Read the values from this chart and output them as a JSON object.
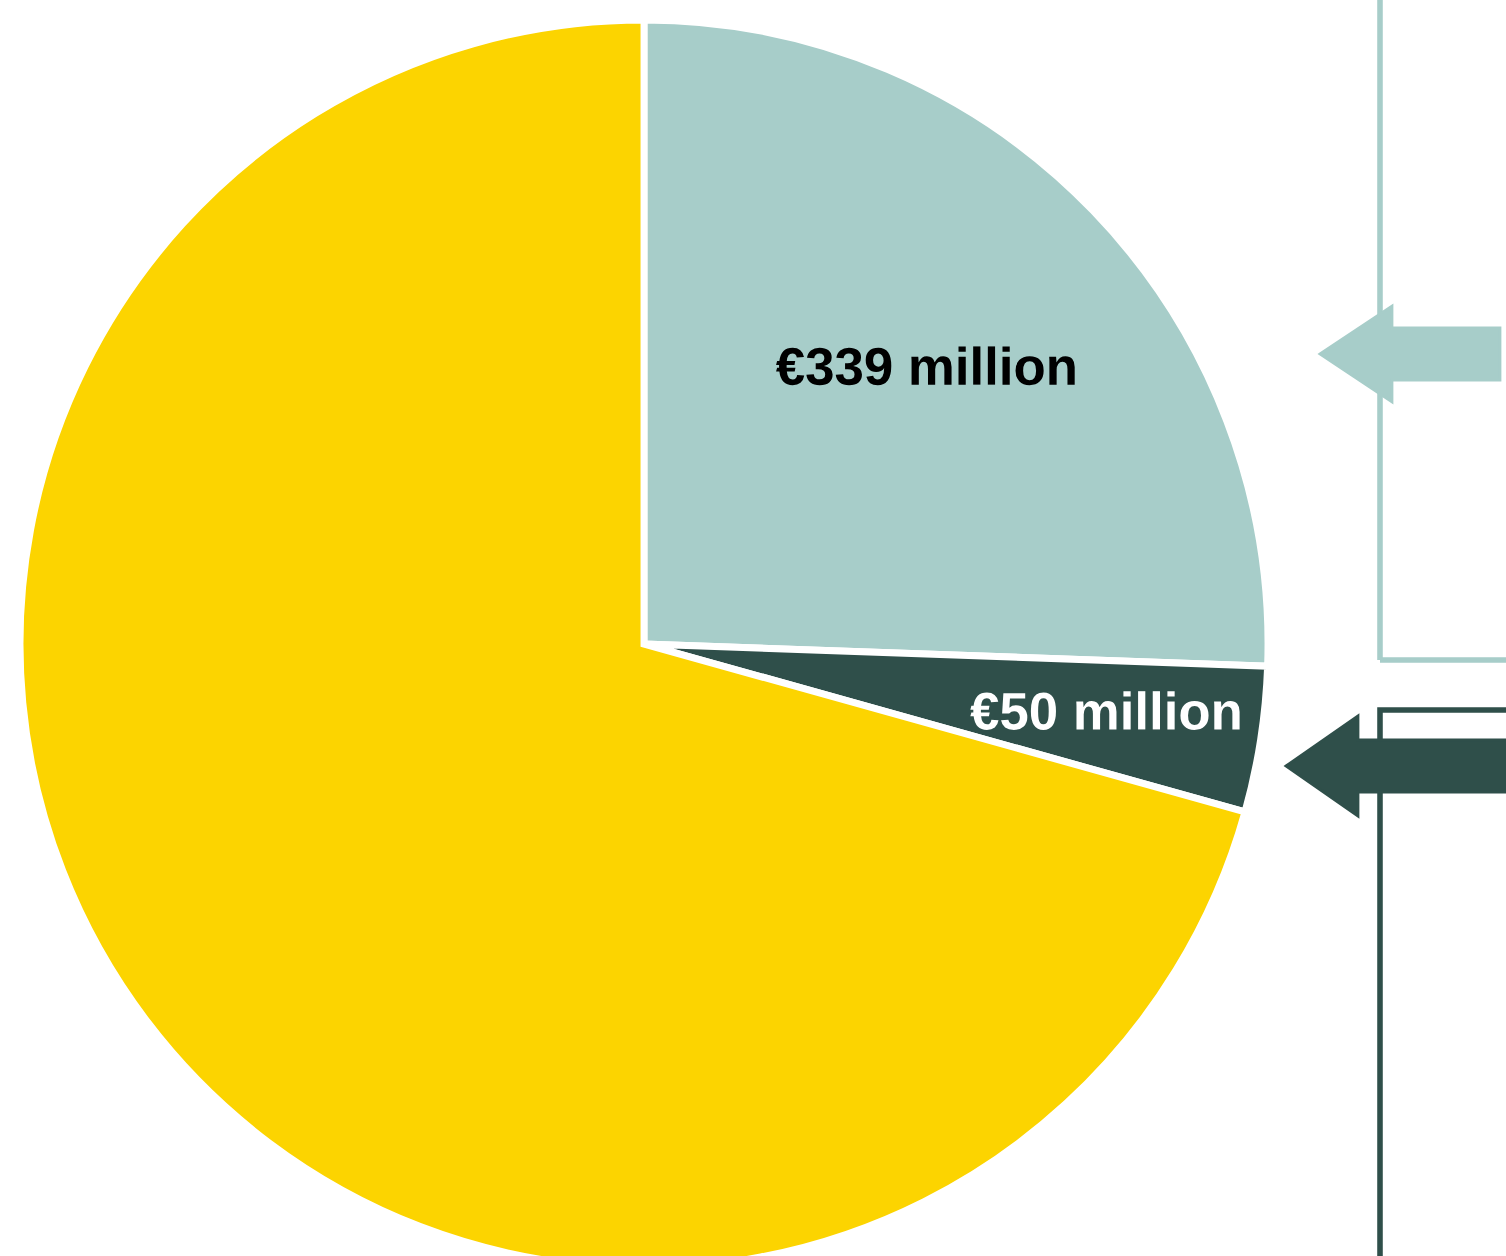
{
  "chart_data": {
    "type": "pie",
    "categories": [
      null,
      null,
      null
    ],
    "values": [
      339,
      50,
      937
    ],
    "colors": [
      "#a7cdc9",
      "#2f4f4a",
      "#fcd400"
    ],
    "value_labels": [
      "€339 million",
      "€50 million",
      null
    ]
  }
}
